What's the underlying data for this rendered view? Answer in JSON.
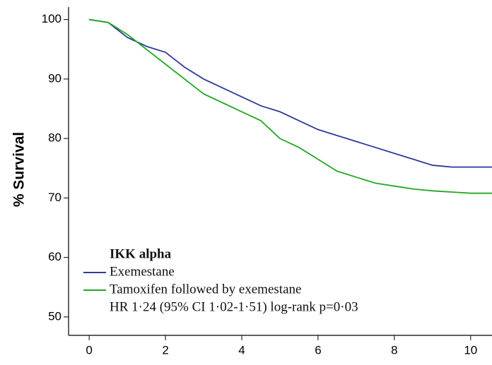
{
  "chart_data": {
    "type": "line",
    "y_label": "% Survival",
    "legend_title": "IKK alpha",
    "annotation": "HR 1·24 (95% CI 1·02-1·51) log-rank p=0·03",
    "x": [
      0,
      0.5,
      1,
      1.5,
      2,
      2.5,
      3,
      3.5,
      4,
      4.5,
      5,
      5.5,
      6,
      6.5,
      7,
      7.5,
      8,
      8.5,
      9,
      9.5,
      10,
      10.56
    ],
    "series": [
      {
        "name": "Exemestane",
        "color": "#2e3a9a",
        "values": [
          100,
          99.5,
          97,
          95.5,
          94.5,
          92,
          90,
          88.5,
          87,
          85.5,
          84.5,
          83,
          81.5,
          80.5,
          79.5,
          78.5,
          77.5,
          76.5,
          75.5,
          75.2,
          75.2,
          75.2
        ]
      },
      {
        "name": "Tamoxifen followed by exemestane",
        "color": "#22a822",
        "values": [
          100,
          99.5,
          97.5,
          95,
          92.5,
          90,
          87.5,
          86,
          84.5,
          83,
          80,
          78.5,
          76.5,
          74.5,
          73.5,
          72.5,
          72,
          71.5,
          71.2,
          71,
          70.8,
          70.8
        ]
      }
    ],
    "xlim": [
      -0.54,
      10.56
    ],
    "xticks": [
      0,
      2,
      4,
      6,
      8,
      10
    ],
    "ylim": [
      46.9,
      102.1
    ],
    "yticks": [
      50,
      60,
      70,
      80,
      90,
      100
    ]
  }
}
